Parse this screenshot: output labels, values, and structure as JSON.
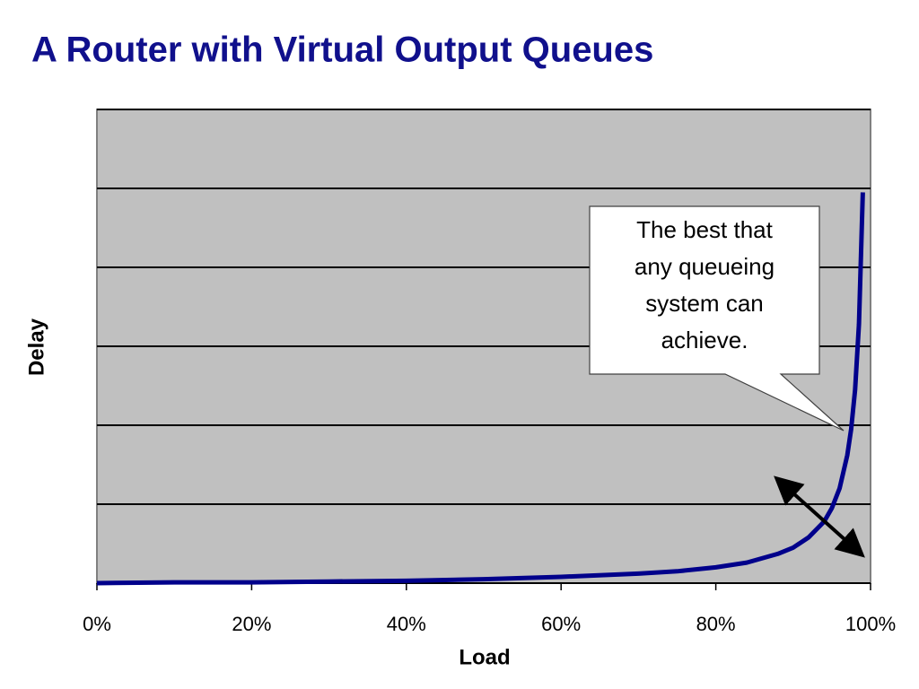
{
  "chart_data": {
    "type": "line",
    "title": "A Router with Virtual Output Queues",
    "xlabel": "Load",
    "ylabel": "Delay",
    "x": [
      0,
      10,
      20,
      30,
      40,
      50,
      60,
      70,
      75,
      80,
      84,
      88,
      90,
      92,
      94,
      95,
      96,
      97,
      97.5,
      98,
      98.5,
      99
    ],
    "values": [
      0,
      0.01,
      0.01,
      0.02,
      0.03,
      0.05,
      0.08,
      0.12,
      0.15,
      0.2,
      0.26,
      0.37,
      0.45,
      0.58,
      0.78,
      0.95,
      1.2,
      1.62,
      1.95,
      2.45,
      3.28,
      4.95
    ],
    "color": "#00008b",
    "xlim": [
      0,
      100
    ],
    "xticks": [
      {
        "value": 0,
        "label": "0%"
      },
      {
        "value": 20,
        "label": "20%"
      },
      {
        "value": 40,
        "label": "40%"
      },
      {
        "value": 60,
        "label": "60%"
      },
      {
        "value": 80,
        "label": "80%"
      },
      {
        "value": 100,
        "label": "100%"
      }
    ],
    "ylim": [
      0,
      6
    ],
    "yticks": [
      0,
      1,
      2,
      3,
      4,
      5,
      6
    ],
    "grid": true,
    "annotation": [
      "The best that",
      "any queueing",
      "system can",
      "achieve."
    ]
  }
}
